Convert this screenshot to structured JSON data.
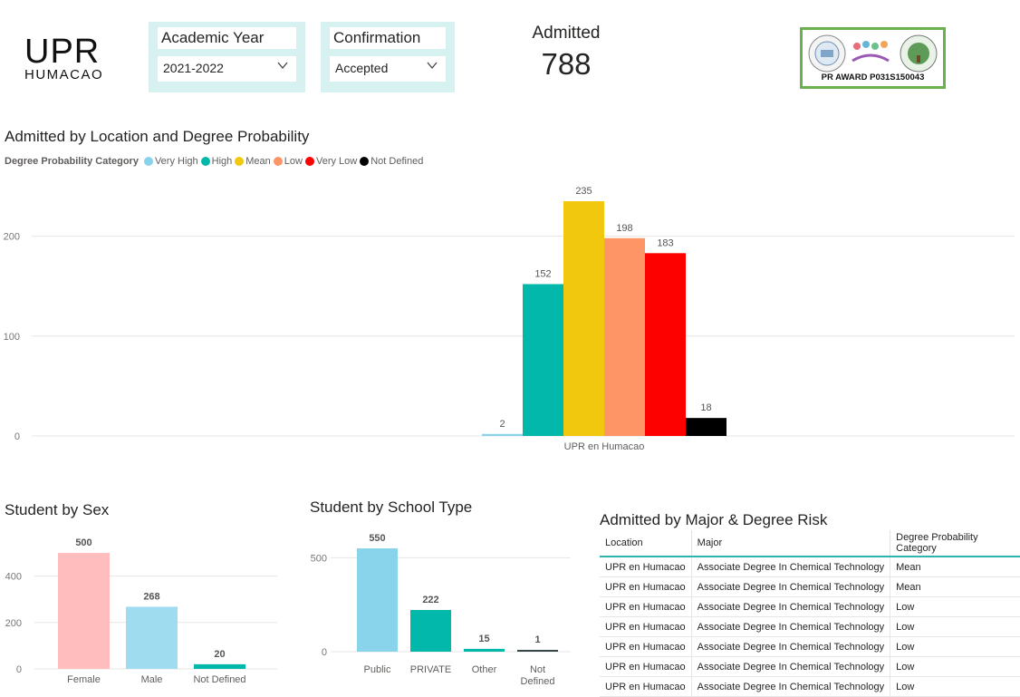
{
  "logo": {
    "line1": "UPR",
    "line2": "HUMACAO"
  },
  "slicers": {
    "year": {
      "title": "Academic Year",
      "value": "2021-2022"
    },
    "confirmation": {
      "title": "Confirmation",
      "value": "Accepted"
    }
  },
  "card": {
    "label": "Admitted",
    "value": "788"
  },
  "award": {
    "text": "PR AWARD P031S150043"
  },
  "colors": {
    "veryHigh": "#8ad4eb",
    "high": "#01b8aa",
    "mean": "#f2c80f",
    "low": "#fd9567",
    "veryLow": "#fd0000",
    "notDefined": "#000000",
    "female": "#ffbdbd",
    "male": "#a0dcf0",
    "public": "#8ad4eb",
    "private": "#01b8aa"
  },
  "main_chart": {
    "title": "Admitted by Location and Degree Probability",
    "legend_title": "Degree Probability Category",
    "legend": [
      "Very High",
      "High",
      "Mean",
      "Low",
      "Very Low",
      "Not Defined"
    ]
  },
  "sex_chart": {
    "title": "Student by Sex"
  },
  "school_chart": {
    "title": "Student by School Type"
  },
  "table": {
    "title": "Admitted by Major & Degree Risk",
    "headers": [
      "Location",
      "Major",
      "Degree Probability Category"
    ],
    "rows": [
      [
        "UPR en Humacao",
        "Associate Degree In Chemical Technology",
        "Mean"
      ],
      [
        "UPR en Humacao",
        "Associate Degree In Chemical Technology",
        "Mean"
      ],
      [
        "UPR en Humacao",
        "Associate Degree In Chemical Technology",
        "Low"
      ],
      [
        "UPR en Humacao",
        "Associate Degree In Chemical Technology",
        "Low"
      ],
      [
        "UPR en Humacao",
        "Associate Degree In Chemical Technology",
        "Low"
      ],
      [
        "UPR en Humacao",
        "Associate Degree In Chemical Technology",
        "Low"
      ],
      [
        "UPR en Humacao",
        "Associate Degree In Chemical Technology",
        "Low"
      ]
    ]
  },
  "chart_data": [
    {
      "type": "bar",
      "title": "Admitted by Location and Degree Probability",
      "categories": [
        "UPR en Humacao"
      ],
      "series": [
        {
          "name": "Very High",
          "values": [
            2
          ],
          "color": "#8ad4eb"
        },
        {
          "name": "High",
          "values": [
            152
          ],
          "color": "#01b8aa"
        },
        {
          "name": "Mean",
          "values": [
            235
          ],
          "color": "#f2c80f"
        },
        {
          "name": "Low",
          "values": [
            198
          ],
          "color": "#fd9567"
        },
        {
          "name": "Very Low",
          "values": [
            183
          ],
          "color": "#fd0000"
        },
        {
          "name": "Not Defined",
          "values": [
            18
          ],
          "color": "#000000"
        }
      ],
      "yticks": [
        0,
        100,
        200
      ],
      "ylim": [
        0,
        235
      ],
      "legend_position": "top-left"
    },
    {
      "type": "bar",
      "title": "Student by Sex",
      "categories": [
        "Female",
        "Male",
        "Not Defined"
      ],
      "values": [
        500,
        268,
        20
      ],
      "colors": [
        "#ffbdbd",
        "#a0dcf0",
        "#01b8aa"
      ],
      "yticks": [
        0,
        200,
        400
      ],
      "ylim": [
        0,
        500
      ]
    },
    {
      "type": "bar",
      "title": "Student by School Type",
      "categories": [
        "Public",
        "PRIVATE",
        "Other",
        "Not Defined"
      ],
      "values": [
        550,
        222,
        15,
        1
      ],
      "colors": [
        "#8ad4eb",
        "#01b8aa",
        "#01b8aa",
        "#374649"
      ],
      "yticks": [
        0,
        500
      ],
      "ylim": [
        0,
        550
      ]
    }
  ]
}
